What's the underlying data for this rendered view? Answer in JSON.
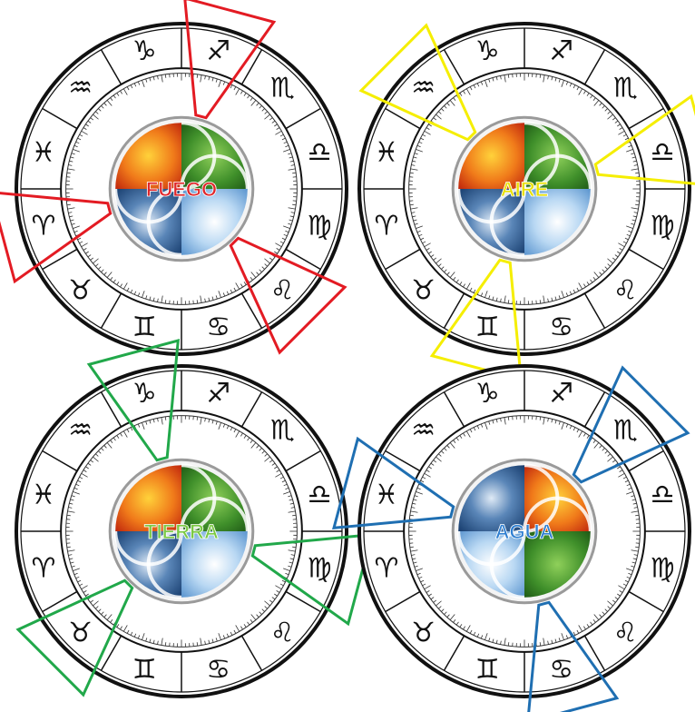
{
  "zodiac_glyphs": [
    "♓",
    "♒",
    "♑",
    "♐",
    "♏",
    "♎",
    "♍",
    "♌",
    "♋",
    "♊",
    "♉",
    "♈"
  ],
  "wheels": [
    {
      "label": "FUEGO",
      "label_color": "#e0262a",
      "highlight_color": "#e31b23",
      "highlighted_signs": [
        "♈",
        "♌",
        "♐"
      ],
      "center_element_order": [
        "fire",
        "earth",
        "air",
        "water"
      ]
    },
    {
      "label": "AIRE",
      "label_color": "#e8e000",
      "highlight_color": "#f5ee00",
      "highlighted_signs": [
        "♒",
        "♎",
        "♊"
      ],
      "center_element_order": [
        "fire",
        "earth",
        "air",
        "water"
      ]
    },
    {
      "label": "TIERRA",
      "label_color": "#7ac943",
      "highlight_color": "#21a84a",
      "highlighted_signs": [
        "♑",
        "♍",
        "♉"
      ],
      "center_element_order": [
        "fire",
        "earth",
        "air",
        "water"
      ]
    },
    {
      "label": "AGUA",
      "label_color": "#2f7fd1",
      "highlight_color": "#1f6fb2",
      "highlighted_signs": [
        "♓",
        "♋",
        "♏"
      ],
      "center_element_order": [
        "water",
        "fire",
        "earth",
        "air"
      ]
    }
  ],
  "element_colors": {
    "fire": "#f07a1a",
    "earth": "#3f8f2a",
    "air": "#9cc6ec",
    "water": "#2a5d99"
  }
}
